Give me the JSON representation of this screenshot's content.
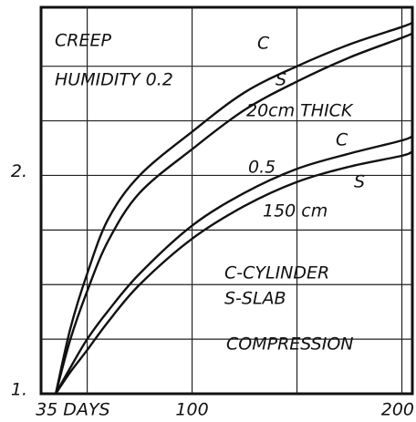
{
  "chart_data": {
    "type": "line",
    "annotations": [
      "CREEP",
      "HUMIDITY 0.2",
      "C",
      "S",
      "20cm THICK",
      "0.5",
      "C",
      "S",
      "150 cm",
      "C-CYLINDER",
      "S-SLAB",
      "COMPRESSION"
    ],
    "x": [
      35,
      42,
      50,
      60,
      75,
      100,
      125,
      150,
      175,
      200,
      205
    ],
    "series": [
      {
        "color": "#111111",
        "values": [
          1,
          1.3,
          1.55,
          1.8,
          2.0,
          2.2,
          2.38,
          2.5,
          2.6,
          2.68,
          2.7
        ]
      },
      {
        "color": "#111111",
        "values": [
          1,
          1.25,
          1.47,
          1.7,
          1.92,
          2.12,
          2.3,
          2.43,
          2.54,
          2.63,
          2.65
        ]
      },
      {
        "color": "#111111",
        "values": [
          1,
          1.12,
          1.25,
          1.38,
          1.55,
          1.77,
          1.92,
          2.03,
          2.1,
          2.16,
          2.18
        ]
      },
      {
        "color": "#111111",
        "values": [
          1,
          1.1,
          1.2,
          1.33,
          1.5,
          1.71,
          1.86,
          1.97,
          2.04,
          2.09,
          2.11
        ]
      }
    ],
    "xlim": [
      28,
      205
    ],
    "ylim": [
      1,
      2.77
    ],
    "xticks": [
      {
        "value": 35,
        "label": "35 DAYS"
      },
      100,
      200
    ],
    "yticks": [
      {
        "value": 1,
        "label": "1."
      },
      {
        "value": 2,
        "label": "2."
      }
    ],
    "xgrid": [
      50,
      100,
      150,
      200
    ],
    "ygrid": [
      1.25,
      1.5,
      1.75,
      2,
      2.25,
      2.5
    ],
    "grid": true
  }
}
